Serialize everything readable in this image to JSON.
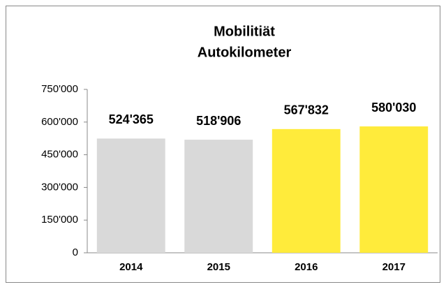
{
  "chart_data": {
    "type": "bar",
    "title": [
      "Mobilitiät",
      "Autokilometer"
    ],
    "categories": [
      "2014",
      "2015",
      "2016",
      "2017"
    ],
    "values": [
      524365,
      518906,
      567832,
      580030
    ],
    "value_labels": [
      "524'365",
      "518'906",
      "567'832",
      "580'030"
    ],
    "colors": [
      "#d9d9d9",
      "#d9d9d9",
      "#ffeb3b",
      "#ffeb3b"
    ],
    "ylim": [
      0,
      750000
    ],
    "yticks": [
      0,
      {
        "value": 150000,
        "label": "150'000"
      },
      {
        "value": 300000,
        "label": "300'000"
      },
      {
        "value": 450000,
        "label": "450'000"
      },
      {
        "value": 600000,
        "label": "600'000"
      },
      {
        "value": 750000,
        "label": "750'000"
      }
    ],
    "grid": false
  }
}
